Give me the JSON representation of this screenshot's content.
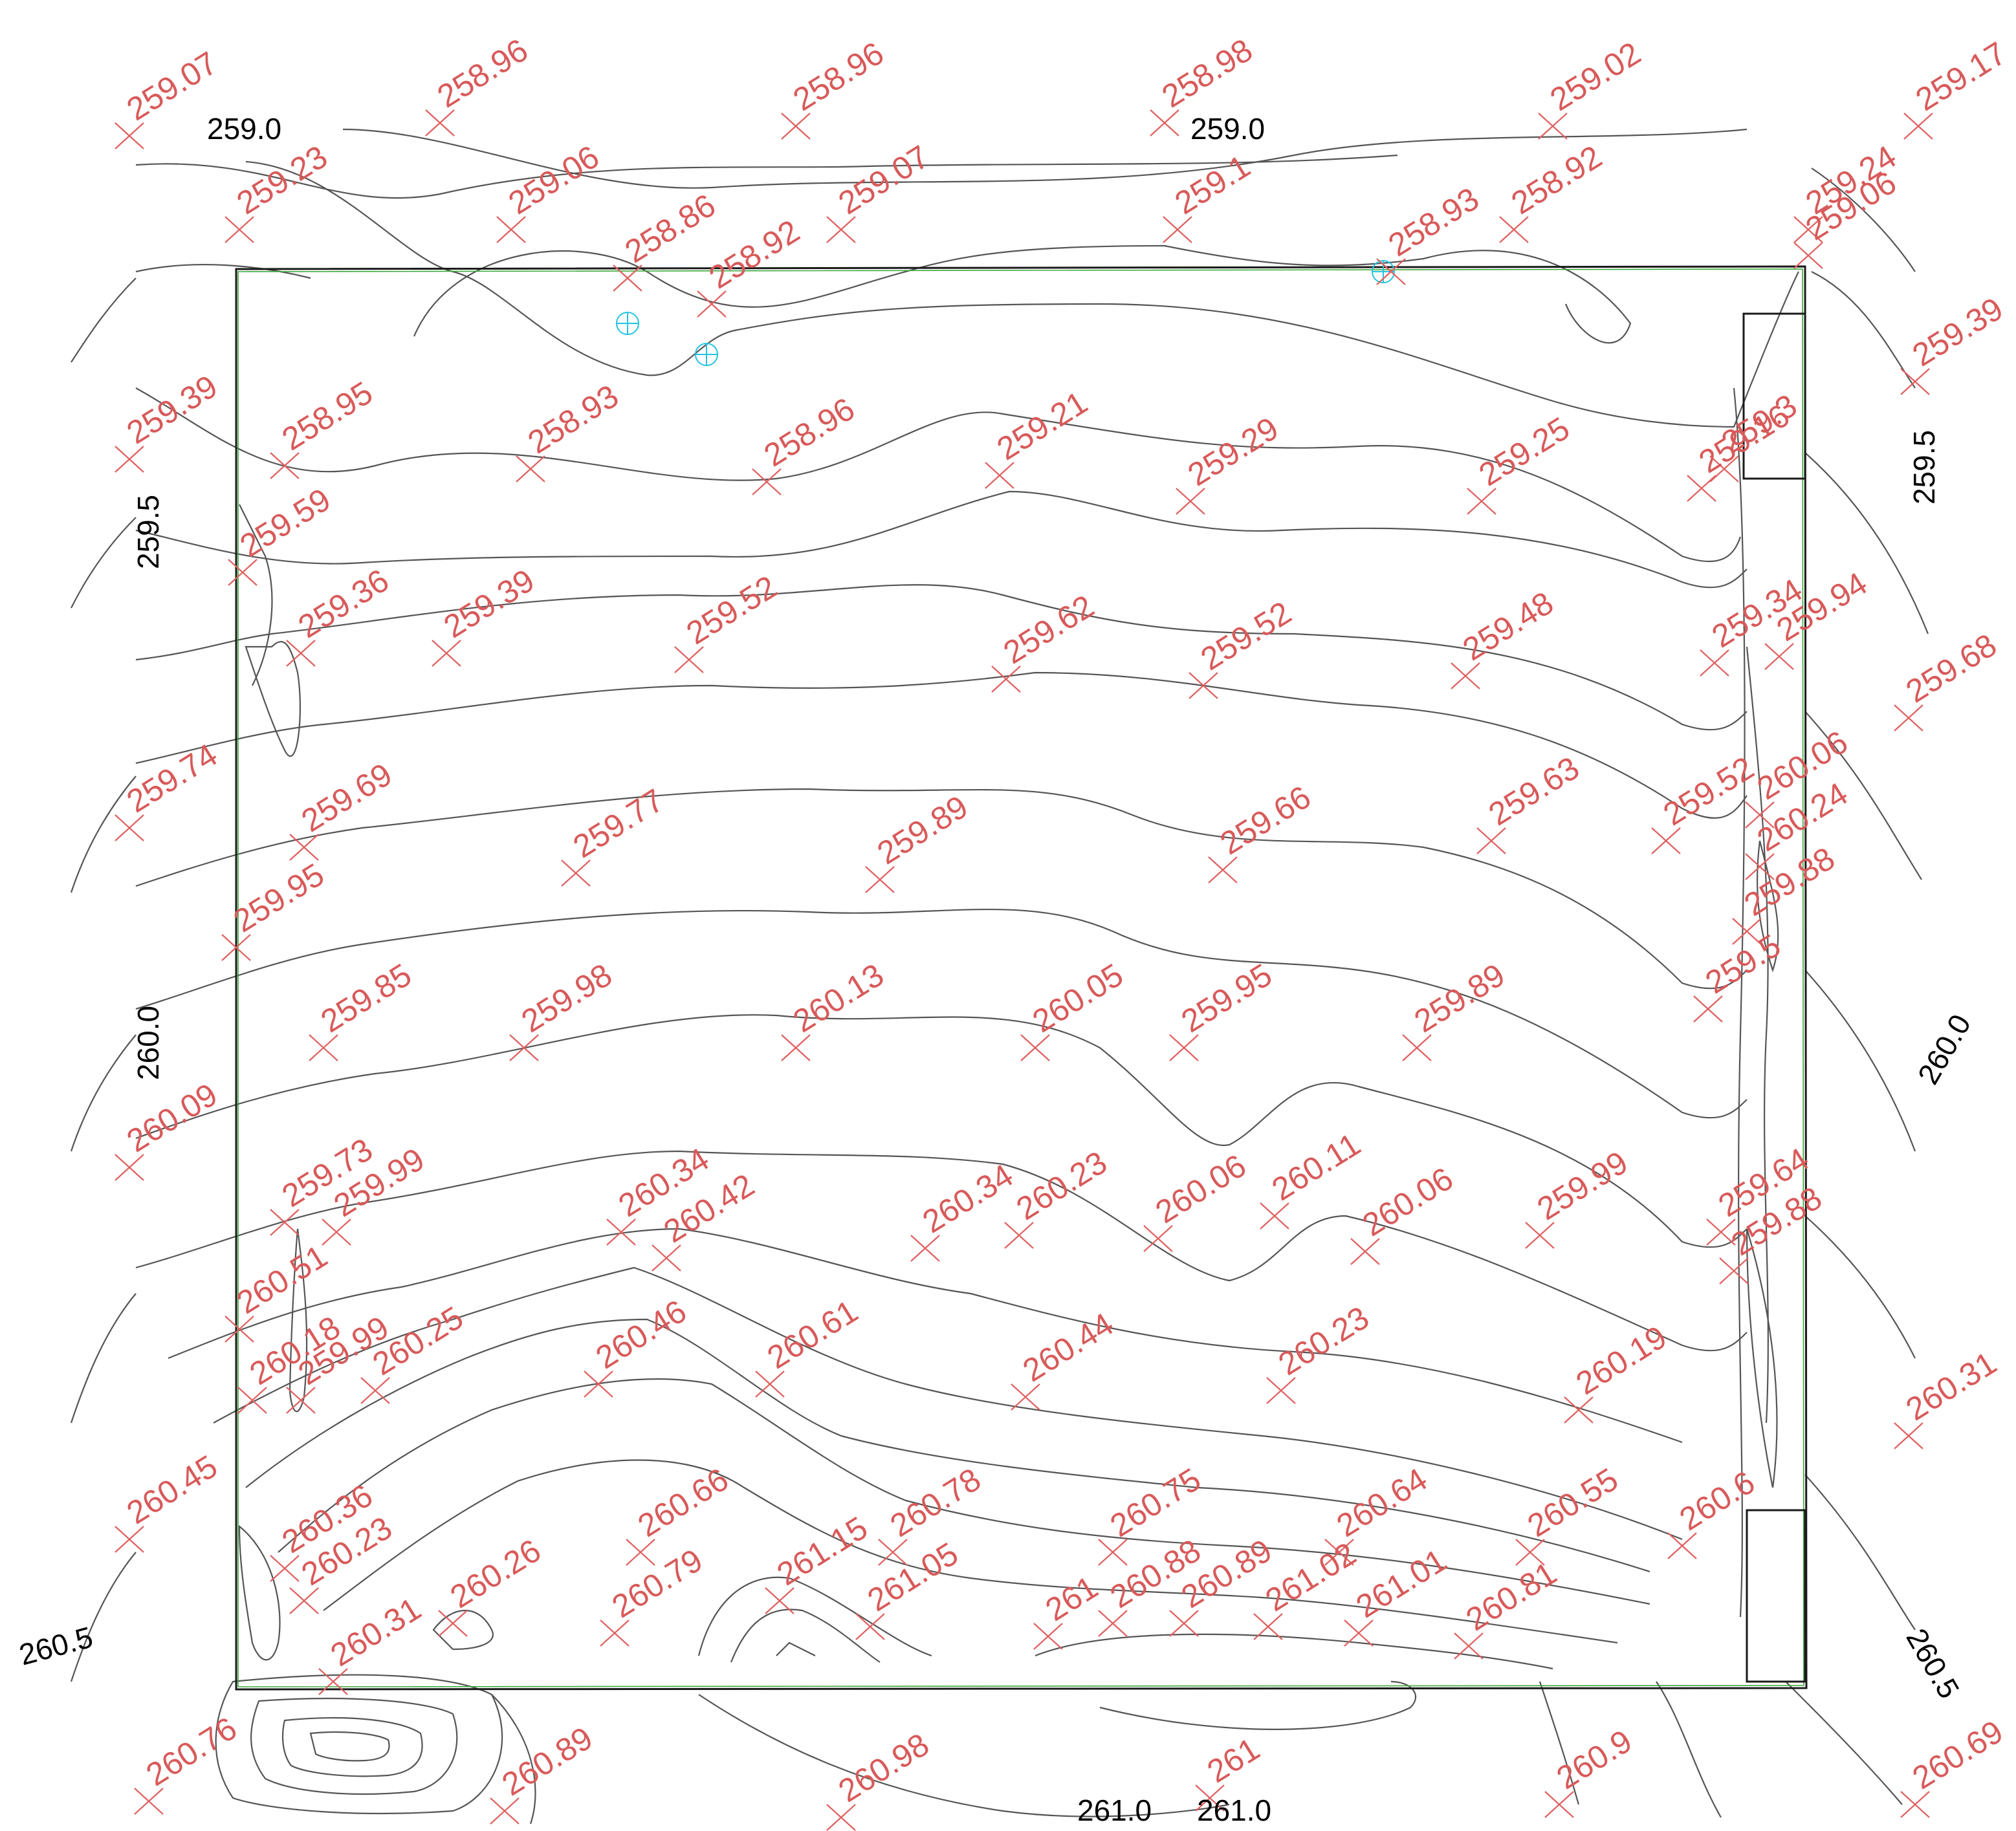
{
  "map": {
    "contour_labels": [
      "259.0",
      "259.0",
      "259.5",
      "259.5",
      "260.0",
      "260.0",
      "260.5",
      "260.5",
      "261.0",
      "261.0"
    ],
    "spot_elevations": [
      "259.07",
      "258.96",
      "258.96",
      "258.98",
      "259.02",
      "259.17",
      "259.23",
      "259.06",
      "259.07",
      "259.1",
      "258.93",
      "258.92",
      "259.24",
      "259.06",
      "258.86",
      "258.92",
      "258.95",
      "258.93",
      "258.96",
      "259.21",
      "259.29",
      "259.25",
      "259.3",
      "259.16",
      "259.39",
      "259.39",
      "259.59",
      "259.36",
      "259.39",
      "259.52",
      "259.62",
      "259.52",
      "259.48",
      "259.34",
      "259.94",
      "259.68",
      "259.74",
      "259.69",
      "259.77",
      "259.89",
      "259.66",
      "259.63",
      "259.52",
      "260.06",
      "260.24",
      "259.88",
      "259.95",
      "259.85",
      "259.98",
      "260.13",
      "260.05",
      "259.95",
      "259.89",
      "259.5",
      "260.09",
      "259.73",
      "259.99",
      "260.34",
      "260.42",
      "260.34",
      "260.23",
      "260.06",
      "260.11",
      "260.06",
      "259.99",
      "259.64",
      "259.88",
      "260.51",
      "260.18",
      "259.99",
      "260.25",
      "260.46",
      "260.61",
      "260.44",
      "260.23",
      "260.19",
      "260.31",
      "260.45",
      "260.36",
      "260.23",
      "260.26",
      "260.66",
      "260.78",
      "260.75",
      "260.64",
      "260.55",
      "260.6",
      "260.31",
      "260.79",
      "261.15",
      "261.05",
      "261",
      "260.88",
      "260.89",
      "261.02",
      "261.01",
      "260.81",
      "260.76",
      "260.89",
      "260.98",
      "261",
      "260.9",
      "260.69"
    ]
  }
}
